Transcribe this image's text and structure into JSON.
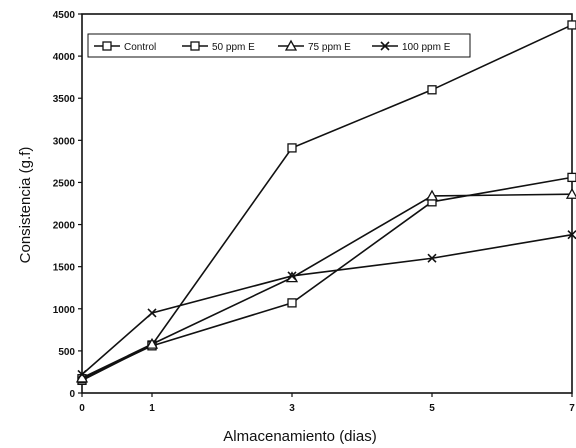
{
  "chart_data": {
    "type": "line",
    "title": "",
    "xlabel": "Almacenamiento (dias)",
    "ylabel": "Consistencia (g.f)",
    "x": [
      0,
      1,
      3,
      5,
      7
    ],
    "x_ticks": [
      "0",
      "1",
      "3",
      "5",
      "7"
    ],
    "y_ticks": [
      "0",
      "500",
      "1000",
      "1500",
      "2000",
      "2500",
      "3000",
      "3500",
      "4000",
      "4500"
    ],
    "ylim": [
      0,
      4500
    ],
    "grid": false,
    "legend_position": "top",
    "series": [
      {
        "name": "Control",
        "marker": "square",
        "values": [
          150,
          570,
          2910,
          3600,
          4370
        ]
      },
      {
        "name": "50 ppm E",
        "marker": "square",
        "values": [
          170,
          560,
          1070,
          2270,
          2560
        ]
      },
      {
        "name": "75 ppm E",
        "marker": "triangle",
        "values": [
          180,
          580,
          1370,
          2340,
          2360
        ]
      },
      {
        "name": "100 ppm E",
        "marker": "x",
        "values": [
          220,
          950,
          1390,
          1600,
          1880
        ]
      }
    ]
  }
}
